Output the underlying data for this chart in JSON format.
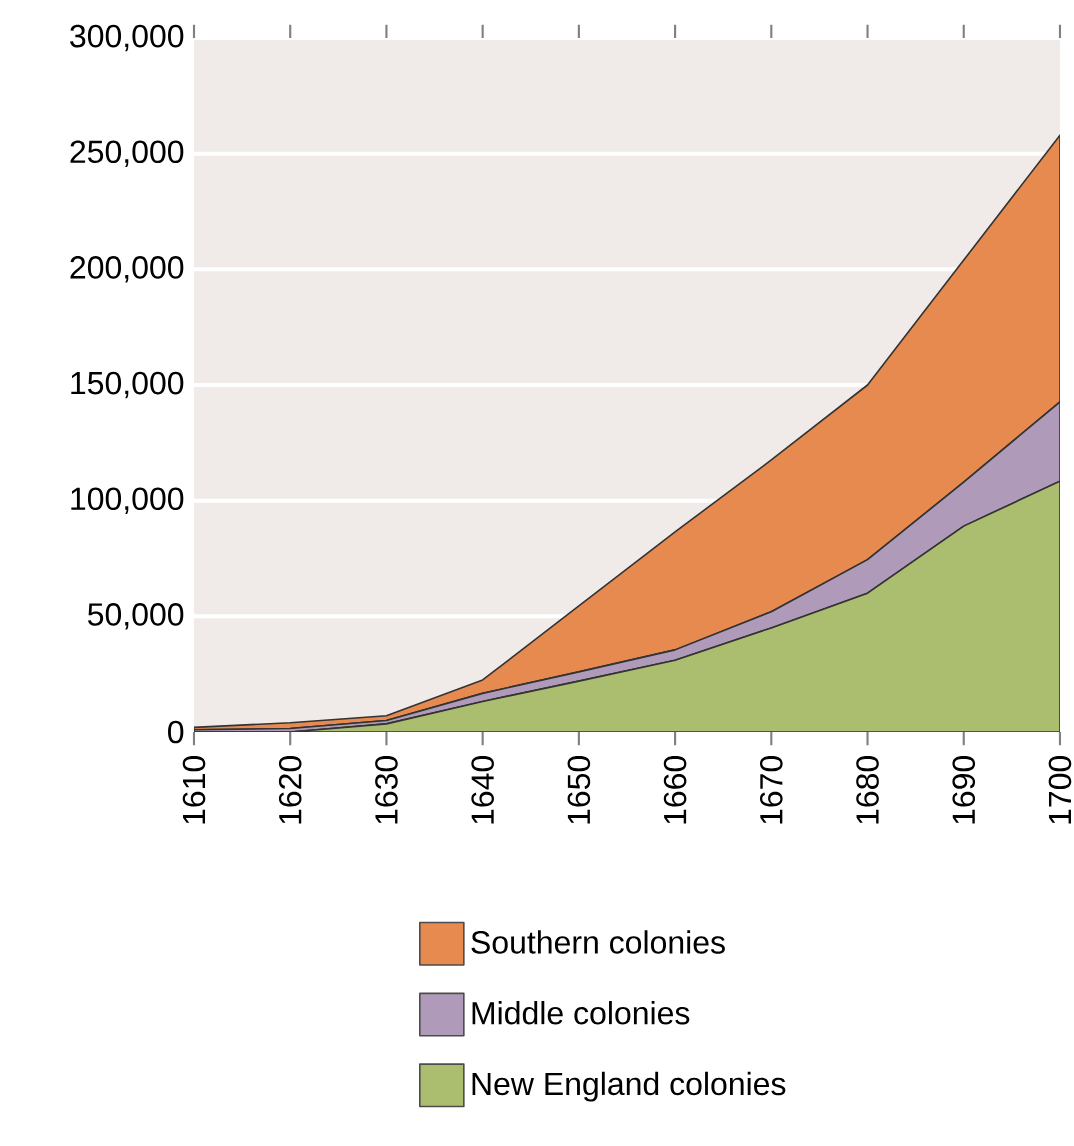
{
  "chart_data": {
    "type": "area",
    "stacked": true,
    "x": [
      1610,
      1620,
      1630,
      1640,
      1650,
      1660,
      1670,
      1680,
      1690,
      1700
    ],
    "series": [
      {
        "name": "New England colonies",
        "color": "#abbd6e",
        "values": [
          0,
          0,
          3500,
          13200,
          22000,
          31000,
          45000,
          60000,
          89000,
          108400
        ]
      },
      {
        "name": "Middle colonies",
        "color": "#af9bb9",
        "values": [
          1000,
          1500,
          1500,
          3500,
          4000,
          4500,
          7000,
          14500,
          19000,
          34300
        ]
      },
      {
        "name": "Southern colonies",
        "color": "#e68a50",
        "values": [
          1000,
          2500,
          2000,
          5800,
          28500,
          51000,
          65600,
          75500,
          96000,
          115300
        ]
      }
    ],
    "xlim": [
      1610,
      1700
    ],
    "xticks": [
      1610,
      1620,
      1630,
      1640,
      1650,
      1660,
      1670,
      1680,
      1690,
      1700
    ],
    "ylim": [
      0,
      300000
    ],
    "yticks": [
      {
        "value": 0,
        "label": "0"
      },
      {
        "value": 50000,
        "label": "50,000"
      },
      {
        "value": 100000,
        "label": "100,000"
      },
      {
        "value": 150000,
        "label": "150,000"
      },
      {
        "value": 200000,
        "label": "200,000"
      },
      {
        "value": 250000,
        "label": "250,000"
      },
      {
        "value": 300000,
        "label": "300,000"
      }
    ],
    "grid": "y",
    "legend": "bottom"
  }
}
